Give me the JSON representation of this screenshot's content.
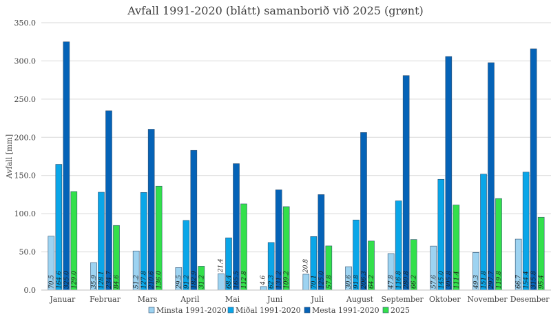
{
  "chart_data": {
    "type": "bar",
    "title": "Avfall 1991-2020 (blátt) samanborið við 2025 (grønt)",
    "ylabel": "Avfall [mm]",
    "xlabel": "",
    "ylim": [
      0,
      350
    ],
    "yticks": [
      "0.0",
      "50.0",
      "100.0",
      "150.0",
      "200.0",
      "250.0",
      "300.0",
      "350.0"
    ],
    "grid": true,
    "legend_position": "bottom",
    "categories": [
      "Januar",
      "Februar",
      "Mars",
      "April",
      "Mai",
      "Juni",
      "Juli",
      "August",
      "September",
      "Oktober",
      "November",
      "Desember"
    ],
    "series": [
      {
        "name": "Minsta 1991-2020",
        "color": "#9dd3f1",
        "values": [
          70.5,
          35.9,
          51.2,
          29.5,
          21.4,
          4.6,
          20.8,
          30.6,
          47.8,
          57.6,
          49.3,
          66.7
        ],
        "labels": [
          "70.5",
          "35.9",
          "51.2",
          "29.5",
          "21.4",
          "4.6",
          "20.8",
          "30.6",
          "47.8",
          "57.6",
          "49.3",
          "66.7"
        ]
      },
      {
        "name": "Miðal 1991-2020",
        "color": "#0aa6e8",
        "values": [
          164.6,
          128.1,
          127.8,
          91.2,
          68.4,
          62.3,
          70.1,
          91.8,
          116.8,
          145.0,
          151.8,
          154.4
        ],
        "labels": [
          "164.6",
          "128.1",
          "127.8",
          "91.2",
          "68.4",
          "62.3",
          "70.1",
          "91.8",
          "116.8",
          "145.0",
          "151.8",
          "154.4"
        ]
      },
      {
        "name": "Mesta 1991-2020",
        "color": "#0563b7",
        "values": [
          325.0,
          234.7,
          210.6,
          182.9,
          165.5,
          131.2,
          125.0,
          206.3,
          280.8,
          305.8,
          297.7,
          315.8
        ],
        "labels": [
          "325.0",
          "234.7",
          "210.6",
          "182.9",
          "165.5",
          "131.2",
          "125.0",
          "206.3",
          "280.8",
          "305.8",
          "297.7",
          "315.8"
        ]
      },
      {
        "name": "2025",
        "color": "#33e04b",
        "values": [
          129.0,
          84.6,
          136.0,
          31.2,
          112.8,
          109.2,
          57.8,
          64.2,
          66.2,
          111.4,
          119.8,
          95.4
        ],
        "labels": [
          "129.0",
          "84.6",
          "136.0",
          "31.2",
          "112.8",
          "109.2",
          "57.8",
          "64.2",
          "66.2",
          "111.4",
          "119.8",
          "95.4"
        ]
      }
    ]
  }
}
